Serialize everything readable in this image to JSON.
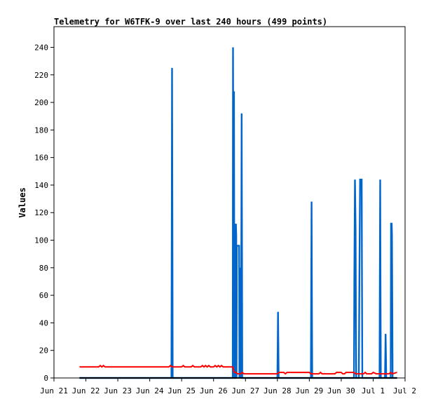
{
  "chart_data": {
    "type": "line",
    "title": "Telemetry for W6TFK-9 over last 240 hours (499 points)",
    "xlabel": "",
    "ylabel": "Values",
    "x_unit": "days",
    "x_tick_labels": [
      "Jun 21",
      "Jun 22",
      "Jun 23",
      "Jun 24",
      "Jun 25",
      "Jun 26",
      "Jun 27",
      "Jun 28",
      "Jun 29",
      "Jun 30",
      "Jul 1",
      "Jul 2"
    ],
    "xlim": [
      0,
      11
    ],
    "y_ticks": [
      0,
      20,
      40,
      60,
      80,
      100,
      120,
      140,
      160,
      180,
      200,
      220,
      240
    ],
    "ylim": [
      0,
      255
    ],
    "grid": false,
    "legend": "none",
    "series": [
      {
        "color": "#0066cc",
        "style": "spikes",
        "points": [
          [
            0.8,
            0
          ],
          [
            3.68,
            0
          ],
          [
            3.69,
            112
          ],
          [
            3.7,
            225
          ],
          [
            3.71,
            112
          ],
          [
            3.72,
            0
          ],
          [
            5.6,
            0
          ],
          [
            5.61,
            240
          ],
          [
            5.62,
            120
          ],
          [
            5.63,
            0
          ],
          [
            5.64,
            208
          ],
          [
            5.65,
            56
          ],
          [
            5.66,
            0
          ],
          [
            5.69,
            0
          ],
          [
            5.7,
            112
          ],
          [
            5.71,
            104
          ],
          [
            5.72,
            0
          ],
          [
            5.73,
            96
          ],
          [
            5.8,
            96
          ],
          [
            5.81,
            0
          ],
          [
            5.83,
            48
          ],
          [
            5.84,
            80
          ],
          [
            5.85,
            40
          ],
          [
            5.86,
            0
          ],
          [
            5.88,
            192
          ],
          [
            5.89,
            96
          ],
          [
            5.9,
            0
          ],
          [
            7.0,
            0
          ],
          [
            7.01,
            24
          ],
          [
            7.02,
            48
          ],
          [
            7.03,
            24
          ],
          [
            7.04,
            0
          ],
          [
            8.05,
            0
          ],
          [
            8.06,
            64
          ],
          [
            8.07,
            128
          ],
          [
            8.08,
            64
          ],
          [
            8.09,
            0
          ],
          [
            9.4,
            0
          ],
          [
            9.41,
            72
          ],
          [
            9.43,
            144
          ],
          [
            9.45,
            108
          ],
          [
            9.46,
            36
          ],
          [
            9.47,
            0
          ],
          [
            9.55,
            0
          ],
          [
            9.56,
            36
          ],
          [
            9.58,
            108
          ],
          [
            9.59,
            144
          ],
          [
            9.64,
            144
          ],
          [
            9.65,
            72
          ],
          [
            9.66,
            0
          ],
          [
            10.2,
            0
          ],
          [
            10.21,
            72
          ],
          [
            10.22,
            144
          ],
          [
            10.23,
            72
          ],
          [
            10.24,
            0
          ],
          [
            10.37,
            0
          ],
          [
            10.38,
            16
          ],
          [
            10.39,
            32
          ],
          [
            10.4,
            16
          ],
          [
            10.41,
            0
          ],
          [
            10.55,
            0
          ],
          [
            10.56,
            112
          ],
          [
            10.58,
            112
          ],
          [
            10.59,
            104
          ],
          [
            10.6,
            48
          ],
          [
            10.61,
            0
          ],
          [
            10.75,
            0
          ]
        ]
      },
      {
        "color": "#ff0000",
        "style": "line",
        "points": [
          [
            0.8,
            8
          ],
          [
            1.4,
            8
          ],
          [
            1.45,
            9
          ],
          [
            1.5,
            8
          ],
          [
            1.55,
            9
          ],
          [
            1.6,
            8
          ],
          [
            3.6,
            8
          ],
          [
            3.65,
            9
          ],
          [
            3.72,
            8
          ],
          [
            4.0,
            8
          ],
          [
            4.05,
            9
          ],
          [
            4.1,
            8
          ],
          [
            4.3,
            8
          ],
          [
            4.35,
            9
          ],
          [
            4.4,
            8
          ],
          [
            4.6,
            8
          ],
          [
            4.65,
            9
          ],
          [
            4.7,
            8
          ],
          [
            4.75,
            9
          ],
          [
            4.8,
            8
          ],
          [
            4.85,
            9
          ],
          [
            4.9,
            8
          ],
          [
            5.0,
            8
          ],
          [
            5.05,
            9
          ],
          [
            5.1,
            8
          ],
          [
            5.15,
            9
          ],
          [
            5.2,
            8
          ],
          [
            5.25,
            9
          ],
          [
            5.3,
            8
          ],
          [
            5.6,
            8
          ],
          [
            5.65,
            4
          ],
          [
            5.7,
            4
          ],
          [
            5.75,
            3
          ],
          [
            5.85,
            3
          ],
          [
            5.9,
            4
          ],
          [
            5.95,
            3
          ],
          [
            7.0,
            3
          ],
          [
            7.05,
            4
          ],
          [
            7.2,
            4
          ],
          [
            7.25,
            3
          ],
          [
            7.3,
            4
          ],
          [
            8.0,
            4
          ],
          [
            8.05,
            3
          ],
          [
            8.3,
            3
          ],
          [
            8.35,
            4
          ],
          [
            8.4,
            3
          ],
          [
            8.8,
            3
          ],
          [
            8.85,
            4
          ],
          [
            9.0,
            4
          ],
          [
            9.05,
            3
          ],
          [
            9.1,
            3
          ],
          [
            9.15,
            4
          ],
          [
            9.4,
            4
          ],
          [
            9.45,
            3
          ],
          [
            9.7,
            3
          ],
          [
            9.75,
            4
          ],
          [
            9.8,
            3
          ],
          [
            9.95,
            3
          ],
          [
            10.0,
            4
          ],
          [
            10.1,
            3
          ],
          [
            10.5,
            3
          ],
          [
            10.55,
            4
          ],
          [
            10.6,
            3
          ],
          [
            10.75,
            4
          ]
        ]
      },
      {
        "color": "#000000",
        "style": "line",
        "points": [
          [
            0.8,
            0
          ],
          [
            10.75,
            0
          ]
        ]
      }
    ]
  }
}
